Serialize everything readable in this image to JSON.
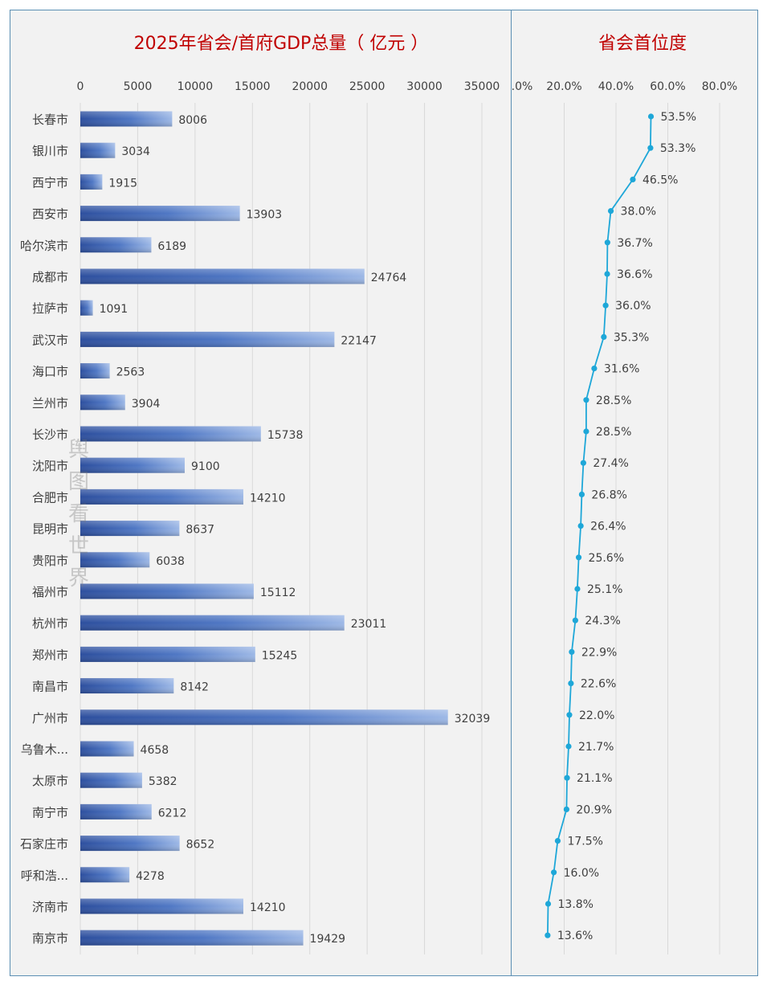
{
  "titles": {
    "left": "2025年省会/首府GDP总量（ 亿元 ）",
    "right": "省会首位度"
  },
  "watermark": [
    "舆",
    "图",
    "看",
    "世",
    "界"
  ],
  "colors": {
    "title": "#c00000",
    "bar": "#3a5ca8",
    "line": "#1ea7d8",
    "frame": "#5b8fb3",
    "background": "#f2f2f2"
  },
  "chart_data": [
    {
      "type": "bar",
      "orientation": "horizontal",
      "title": "2025年省会/首府GDP总量（ 亿元 ）",
      "xlim": [
        0,
        35000
      ],
      "xticks": [
        "0",
        "5000",
        "10000",
        "15000",
        "20000",
        "25000",
        "30000",
        "35000"
      ],
      "categories": [
        "长春市",
        "银川市",
        "西宁市",
        "西安市",
        "哈尔滨市",
        "成都市",
        "拉萨市",
        "武汉市",
        "海口市",
        "兰州市",
        "长沙市",
        "沈阳市",
        "合肥市",
        "昆明市",
        "贵阳市",
        "福州市",
        "杭州市",
        "郑州市",
        "南昌市",
        "广州市",
        "乌鲁木...",
        "太原市",
        "南宁市",
        "石家庄市",
        "呼和浩...",
        "济南市",
        "南京市"
      ],
      "values": [
        8006,
        3034,
        1915,
        13903,
        6189,
        24764,
        1091,
        22147,
        2563,
        3904,
        15738,
        9100,
        14210,
        8637,
        6038,
        15112,
        23011,
        15245,
        8142,
        32039,
        4658,
        5382,
        6212,
        8652,
        4278,
        14210,
        19429
      ],
      "labels": [
        "8006",
        "3034",
        "1915",
        "13903",
        "6189",
        "24764",
        "1091",
        "22147",
        "2563",
        "3904",
        "15738",
        "9100",
        "14210",
        "8637",
        "6038",
        "15112",
        "23011",
        "15245",
        "8142",
        "32039",
        "4658",
        "5382",
        "6212",
        "8652",
        "4278",
        "14210",
        "19429"
      ],
      "grid": true
    },
    {
      "type": "line",
      "title": "省会首位度",
      "xlim": [
        0,
        80
      ],
      "xticks": [
        ".0%",
        "20.0%",
        "40.0%",
        "60.0%",
        "80.0%"
      ],
      "values": [
        53.5,
        53.3,
        46.5,
        38.0,
        36.7,
        36.6,
        36.0,
        35.3,
        31.6,
        28.5,
        28.5,
        27.4,
        26.8,
        26.4,
        25.6,
        25.1,
        24.3,
        22.9,
        22.6,
        22.0,
        21.7,
        21.1,
        20.9,
        17.5,
        16.0,
        13.8,
        13.6
      ],
      "labels": [
        "53.5%",
        "53.3%",
        "46.5%",
        "38.0%",
        "36.7%",
        "36.6%",
        "36.0%",
        "35.3%",
        "31.6%",
        "28.5%",
        "28.5%",
        "27.4%",
        "26.8%",
        "26.4%",
        "25.6%",
        "25.1%",
        "24.3%",
        "22.9%",
        "22.6%",
        "22.0%",
        "21.7%",
        "21.1%",
        "20.9%",
        "17.5%",
        "16.0%",
        "13.8%",
        "13.6%"
      ],
      "grid": true
    }
  ]
}
